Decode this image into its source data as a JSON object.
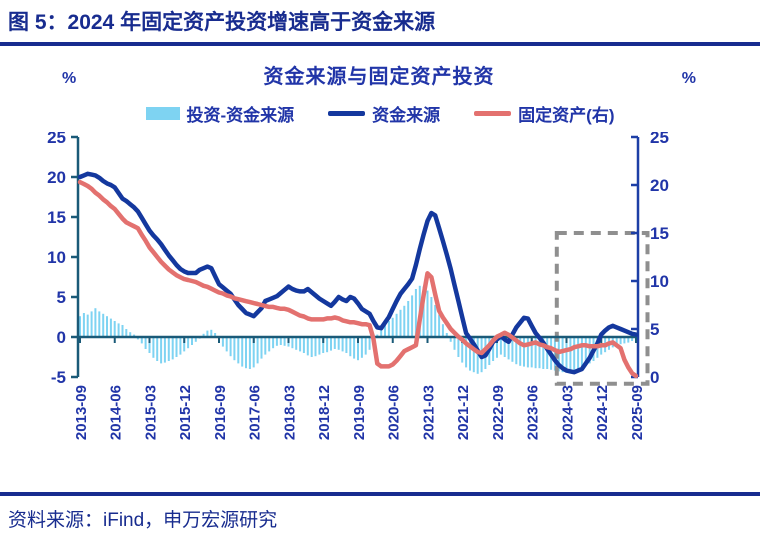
{
  "figure": {
    "title": "图 5：2024 年固定资产投资增速高于资金来源",
    "source": "资料来源：iFind，申万宏源研究"
  },
  "colors": {
    "header_navy": "#182C8F",
    "blue_text": "#2135A8",
    "axis_teal": "#1A5A78",
    "right_axis_blue": "#1D3FA6",
    "bar_fill": "#7ED3F2",
    "funding_line": "#14389E",
    "fixed_line": "#E3716F",
    "highlight_gray": "#8F8F8F"
  },
  "chart_data": {
    "type": "mixed",
    "title": "资金来源与固定资产投资",
    "y_unit_left": "%",
    "y_unit_right": "%",
    "x_start": "2013-09",
    "x_end": "2025-09",
    "x_frequency": "monthly",
    "points": 145,
    "left_axis": {
      "min": -5,
      "max": 25,
      "ticks": [
        25,
        20,
        15,
        10,
        5,
        0,
        -5
      ]
    },
    "right_axis": {
      "min": 0,
      "max": 25,
      "ticks": [
        25,
        20,
        15,
        10,
        5,
        0
      ]
    },
    "x_tick_labels": [
      "2013-09",
      "2014-06",
      "2015-03",
      "2015-12",
      "2016-09",
      "2017-06",
      "2018-03",
      "2018-12",
      "2019-09",
      "2020-06",
      "2021-03",
      "2021-12",
      "2022-09",
      "2023-06",
      "2024-03",
      "2024-12",
      "2025-09"
    ],
    "x_tick_step_months": 9,
    "legend": [
      {
        "label": "投资-资金来源",
        "type": "bar",
        "axis": "left",
        "color": "#7ED3F2"
      },
      {
        "label": "资金来源",
        "type": "line",
        "axis": "left",
        "color": "#14389E"
      },
      {
        "label": "固定资产(右)",
        "type": "line",
        "axis": "right",
        "color": "#E3716F"
      }
    ],
    "series": [
      {
        "name": "投资-资金来源",
        "type": "bar",
        "axis": "left",
        "values": [
          2.6,
          3.0,
          2.8,
          3.2,
          3.6,
          3.2,
          2.9,
          2.6,
          2.3,
          2.0,
          1.7,
          1.5,
          1.0,
          0.6,
          0.3,
          -0.3,
          -0.8,
          -1.5,
          -2.0,
          -2.6,
          -3.0,
          -3.3,
          -3.2,
          -3.0,
          -2.8,
          -2.5,
          -2.2,
          -1.8,
          -1.4,
          -1.0,
          -0.6,
          -0.2,
          0.4,
          0.8,
          0.9,
          0.5,
          -0.4,
          -1.2,
          -1.8,
          -2.4,
          -2.9,
          -3.3,
          -3.7,
          -3.9,
          -4.0,
          -3.8,
          -3.3,
          -2.7,
          -2.2,
          -1.8,
          -1.4,
          -1.1,
          -1.0,
          -1.1,
          -1.2,
          -1.4,
          -1.6,
          -1.8,
          -2.0,
          -2.3,
          -2.5,
          -2.4,
          -2.2,
          -2.0,
          -1.9,
          -1.7,
          -1.5,
          -1.6,
          -1.8,
          -2.0,
          -2.4,
          -2.7,
          -2.9,
          -2.6,
          -2.2,
          -1.6,
          -0.9,
          0.3,
          1.0,
          1.5,
          2.0,
          2.4,
          2.9,
          3.4,
          3.9,
          4.5,
          5.2,
          6.0,
          6.4,
          6.3,
          5.8,
          5.0,
          4.0,
          2.8,
          1.6,
          0.5,
          -0.6,
          -1.6,
          -2.5,
          -3.2,
          -3.8,
          -4.2,
          -4.4,
          -4.6,
          -4.4,
          -4.0,
          -3.5,
          -3.0,
          -2.6,
          -2.2,
          -2.5,
          -2.8,
          -3.1,
          -3.4,
          -3.6,
          -3.7,
          -3.8,
          -3.8,
          -3.9,
          -3.9,
          -4.0,
          -4.0,
          -4.1,
          -4.2,
          -4.3,
          -4.4,
          -4.4,
          -4.4,
          -4.3,
          -4.1,
          -3.8,
          -3.6,
          -3.3,
          -3.0,
          -2.6,
          -2.2,
          -1.9,
          -1.6,
          -1.3,
          -1.1,
          -0.9,
          -0.8,
          -0.7,
          -0.5,
          -0.4
        ]
      },
      {
        "name": "资金来源",
        "type": "line",
        "axis": "left",
        "values": [
          20.0,
          20.2,
          20.4,
          20.3,
          20.2,
          19.9,
          19.5,
          19.2,
          19.0,
          18.7,
          18.0,
          17.3,
          17.0,
          16.6,
          16.2,
          15.7,
          14.9,
          14.1,
          13.3,
          12.7,
          12.2,
          11.6,
          10.9,
          10.2,
          9.6,
          9.0,
          8.5,
          8.2,
          8.0,
          8.0,
          8.0,
          8.4,
          8.6,
          8.8,
          8.6,
          7.6,
          6.6,
          6.2,
          5.8,
          5.4,
          4.7,
          4.0,
          3.5,
          3.0,
          2.8,
          2.6,
          3.1,
          3.6,
          4.5,
          4.7,
          4.9,
          5.1,
          5.5,
          5.9,
          6.3,
          6.0,
          5.8,
          5.7,
          5.7,
          6.0,
          5.6,
          5.2,
          4.8,
          4.5,
          4.2,
          3.9,
          4.4,
          5.0,
          4.7,
          4.5,
          5.0,
          4.8,
          4.2,
          3.5,
          3.2,
          2.9,
          2.0,
          1.2,
          1.1,
          1.8,
          2.5,
          3.5,
          4.5,
          5.4,
          6.0,
          6.6,
          7.3,
          9.0,
          11.0,
          12.8,
          14.5,
          15.5,
          15.2,
          13.6,
          12.0,
          10.3,
          8.5,
          6.5,
          4.5,
          2.5,
          0.5,
          -0.2,
          -0.9,
          -1.7,
          -2.5,
          -2.3,
          -1.5,
          -0.6,
          -0.3,
          0.1,
          -0.3,
          -0.6,
          0.3,
          1.2,
          1.8,
          2.4,
          2.3,
          1.4,
          0.5,
          -0.1,
          -0.7,
          -1.5,
          -2.2,
          -2.9,
          -3.5,
          -3.9,
          -4.2,
          -4.3,
          -4.4,
          -4.2,
          -4.0,
          -3.3,
          -2.6,
          -1.7,
          -0.8,
          0.3,
          0.8,
          1.2,
          1.4,
          1.2,
          1.0,
          0.8,
          0.6,
          0.4,
          0.3
        ]
      },
      {
        "name": "固定资产(右)",
        "type": "line",
        "axis": "right",
        "values": [
          20.3,
          20.1,
          19.9,
          19.6,
          19.2,
          18.9,
          18.5,
          18.2,
          17.8,
          17.5,
          17.0,
          16.5,
          16.1,
          15.9,
          15.7,
          15.5,
          14.8,
          14.2,
          13.5,
          13.0,
          12.5,
          12.0,
          11.6,
          11.2,
          10.9,
          10.6,
          10.4,
          10.2,
          10.1,
          10.0,
          9.9,
          9.7,
          9.5,
          9.4,
          9.2,
          9.0,
          8.8,
          8.7,
          8.5,
          8.4,
          8.2,
          8.1,
          8.0,
          7.9,
          7.8,
          7.7,
          7.6,
          7.5,
          7.4,
          7.3,
          7.3,
          7.2,
          7.1,
          7.1,
          7.0,
          6.8,
          6.6,
          6.4,
          6.3,
          6.1,
          6.0,
          6.0,
          6.0,
          6.0,
          6.1,
          6.1,
          6.2,
          6.1,
          5.9,
          5.8,
          5.7,
          5.7,
          5.6,
          5.5,
          5.5,
          5.4,
          4.0,
          1.4,
          1.1,
          1.1,
          1.1,
          1.3,
          1.7,
          2.2,
          2.7,
          2.9,
          3.1,
          3.3,
          6.0,
          8.5,
          10.8,
          10.4,
          8.6,
          6.9,
          6.2,
          5.6,
          5.0,
          4.6,
          4.2,
          3.9,
          3.5,
          3.2,
          2.9,
          2.6,
          2.5,
          2.9,
          3.3,
          3.8,
          4.2,
          4.4,
          4.6,
          4.4,
          4.1,
          3.8,
          3.5,
          3.3,
          3.4,
          3.5,
          3.6,
          3.4,
          3.3,
          3.1,
          3.0,
          2.8,
          2.6,
          2.7,
          2.8,
          2.9,
          3.1,
          3.2,
          3.3,
          3.3,
          3.2,
          3.2,
          3.2,
          3.3,
          3.3,
          3.5,
          3.6,
          3.3,
          3.0,
          1.8,
          1.0,
          0.4,
          0.1
        ]
      }
    ],
    "highlight_box": {
      "covers": "2024-01 to 2025-09",
      "from_index": 123.5,
      "to_index": 147,
      "top_value_right_axis": 15,
      "bottom_value_right_axis": -0.7,
      "color": "#8F8F8F"
    }
  }
}
